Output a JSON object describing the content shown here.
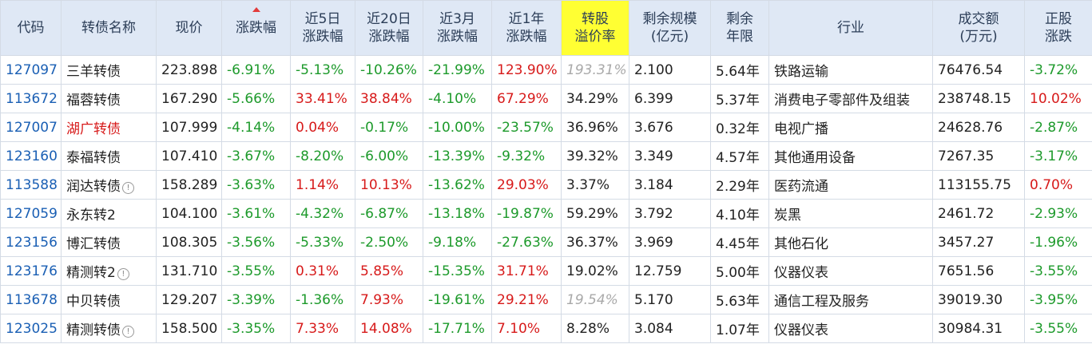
{
  "headers": [
    {
      "key": "code",
      "label": "代码"
    },
    {
      "key": "name",
      "label": "转债名称"
    },
    {
      "key": "price",
      "label": "现价"
    },
    {
      "key": "chg",
      "label": "涨跌幅"
    },
    {
      "key": "chg5d",
      "label": "近5日\n涨跌幅"
    },
    {
      "key": "chg20d",
      "label": "近20日\n涨跌幅"
    },
    {
      "key": "chg3m",
      "label": "近3月\n涨跌幅"
    },
    {
      "key": "chg1y",
      "label": "近1年\n涨跌幅"
    },
    {
      "key": "premium",
      "label": "转股\n溢价率"
    },
    {
      "key": "scale",
      "label": "剩余规模\n(亿元)"
    },
    {
      "key": "years",
      "label": "剩余\n年限"
    },
    {
      "key": "industry",
      "label": "行业"
    },
    {
      "key": "volume",
      "label": "成交额\n(万元)"
    },
    {
      "key": "stock_chg",
      "label": "正股\n涨跌"
    }
  ],
  "sort": {
    "column": "chg",
    "direction": "asc",
    "icon": "sort-up-triangle-icon",
    "color": "#e23b3b"
  },
  "colors": {
    "up": "#d71a1a",
    "down": "#1d9a2b",
    "code": "#1a5fb4",
    "header_bg": "#dfe8f5",
    "highlight": "#ffff33"
  },
  "rows": [
    {
      "code": "127097",
      "name": "三羊转债",
      "info": false,
      "name_red": false,
      "price": "223.898",
      "chg": "-6.91%",
      "chg5d": "-5.13%",
      "chg20d": "-10.26%",
      "chg3m": "-21.99%",
      "chg1y": "123.90%",
      "premium": "193.31%",
      "premium_gray": true,
      "scale": "2.100",
      "years": "5.64年",
      "industry": "铁路运输",
      "volume": "76476.54",
      "stock_chg": "-3.72%"
    },
    {
      "code": "113672",
      "name": "福蓉转债",
      "info": false,
      "name_red": false,
      "price": "167.290",
      "chg": "-5.66%",
      "chg5d": "33.41%",
      "chg20d": "38.84%",
      "chg3m": "-4.10%",
      "chg1y": "67.29%",
      "premium": "34.29%",
      "premium_gray": false,
      "scale": "6.399",
      "years": "5.37年",
      "industry": "消费电子零部件及组装",
      "volume": "238748.15",
      "stock_chg": "10.02%"
    },
    {
      "code": "127007",
      "name": "湖广转债",
      "info": false,
      "name_red": true,
      "price": "107.999",
      "chg": "-4.14%",
      "chg5d": "0.04%",
      "chg20d": "-0.17%",
      "chg3m": "-10.00%",
      "chg1y": "-23.57%",
      "premium": "36.96%",
      "premium_gray": false,
      "scale": "3.676",
      "years": "0.32年",
      "industry": "电视广播",
      "volume": "24628.76",
      "stock_chg": "-2.87%"
    },
    {
      "code": "123160",
      "name": "泰福转债",
      "info": false,
      "name_red": false,
      "price": "107.410",
      "chg": "-3.67%",
      "chg5d": "-8.20%",
      "chg20d": "-6.00%",
      "chg3m": "-13.39%",
      "chg1y": "-9.32%",
      "premium": "39.32%",
      "premium_gray": false,
      "scale": "3.349",
      "years": "4.57年",
      "industry": "其他通用设备",
      "volume": "7267.35",
      "stock_chg": "-3.17%"
    },
    {
      "code": "113588",
      "name": "润达转债",
      "info": true,
      "name_red": false,
      "price": "158.289",
      "chg": "-3.63%",
      "chg5d": "1.14%",
      "chg20d": "10.13%",
      "chg3m": "-13.62%",
      "chg1y": "29.03%",
      "premium": "3.37%",
      "premium_gray": false,
      "scale": "3.184",
      "years": "2.29年",
      "industry": "医药流通",
      "volume": "113155.75",
      "stock_chg": "0.70%"
    },
    {
      "code": "127059",
      "name": "永东转2",
      "info": false,
      "name_red": false,
      "price": "104.100",
      "chg": "-3.61%",
      "chg5d": "-4.32%",
      "chg20d": "-6.87%",
      "chg3m": "-13.18%",
      "chg1y": "-19.87%",
      "premium": "59.29%",
      "premium_gray": false,
      "scale": "3.792",
      "years": "4.10年",
      "industry": "炭黑",
      "volume": "2461.72",
      "stock_chg": "-2.93%"
    },
    {
      "code": "123156",
      "name": "博汇转债",
      "info": false,
      "name_red": false,
      "price": "108.305",
      "chg": "-3.56%",
      "chg5d": "-5.33%",
      "chg20d": "-2.50%",
      "chg3m": "-9.18%",
      "chg1y": "-27.63%",
      "premium": "36.37%",
      "premium_gray": false,
      "scale": "3.969",
      "years": "4.45年",
      "industry": "其他石化",
      "volume": "3457.27",
      "stock_chg": "-1.96%"
    },
    {
      "code": "123176",
      "name": "精测转2",
      "info": true,
      "name_red": false,
      "price": "131.710",
      "chg": "-3.55%",
      "chg5d": "0.31%",
      "chg20d": "5.85%",
      "chg3m": "-15.35%",
      "chg1y": "31.71%",
      "premium": "19.02%",
      "premium_gray": false,
      "scale": "12.759",
      "years": "5.00年",
      "industry": "仪器仪表",
      "volume": "7651.56",
      "stock_chg": "-3.55%"
    },
    {
      "code": "113678",
      "name": "中贝转债",
      "info": false,
      "name_red": false,
      "price": "129.207",
      "chg": "-3.39%",
      "chg5d": "-1.36%",
      "chg20d": "7.93%",
      "chg3m": "-19.61%",
      "chg1y": "29.21%",
      "premium": "19.54%",
      "premium_gray": true,
      "scale": "5.170",
      "years": "5.63年",
      "industry": "通信工程及服务",
      "volume": "39019.30",
      "stock_chg": "-3.95%"
    },
    {
      "code": "123025",
      "name": "精测转债",
      "info": true,
      "name_red": false,
      "price": "158.500",
      "chg": "-3.35%",
      "chg5d": "7.33%",
      "chg20d": "14.08%",
      "chg3m": "-17.71%",
      "chg1y": "7.10%",
      "premium": "8.28%",
      "premium_gray": false,
      "scale": "3.084",
      "years": "1.07年",
      "industry": "仪器仪表",
      "volume": "30984.31",
      "stock_chg": "-3.55%"
    }
  ]
}
